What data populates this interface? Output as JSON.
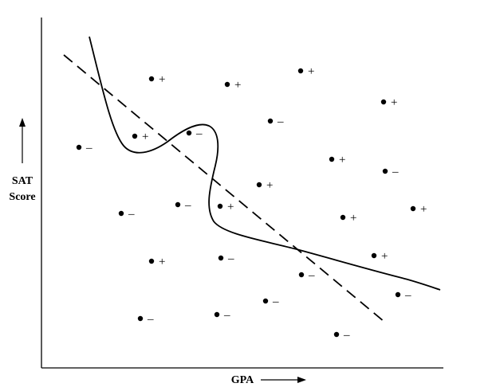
{
  "figure": {
    "y_axis_label_line1": "SAT",
    "y_axis_label_line2": "Score",
    "x_axis_label": "GPA",
    "positive_sign": "+",
    "negative_sign": "–",
    "colors": {
      "ink": "#000000",
      "background": "#ffffff"
    },
    "boundaries": [
      {
        "style": "solid",
        "shape": "wiggly nonlinear decision boundary"
      },
      {
        "style": "dashed",
        "shape": "straight linear decision boundary"
      }
    ]
  }
}
